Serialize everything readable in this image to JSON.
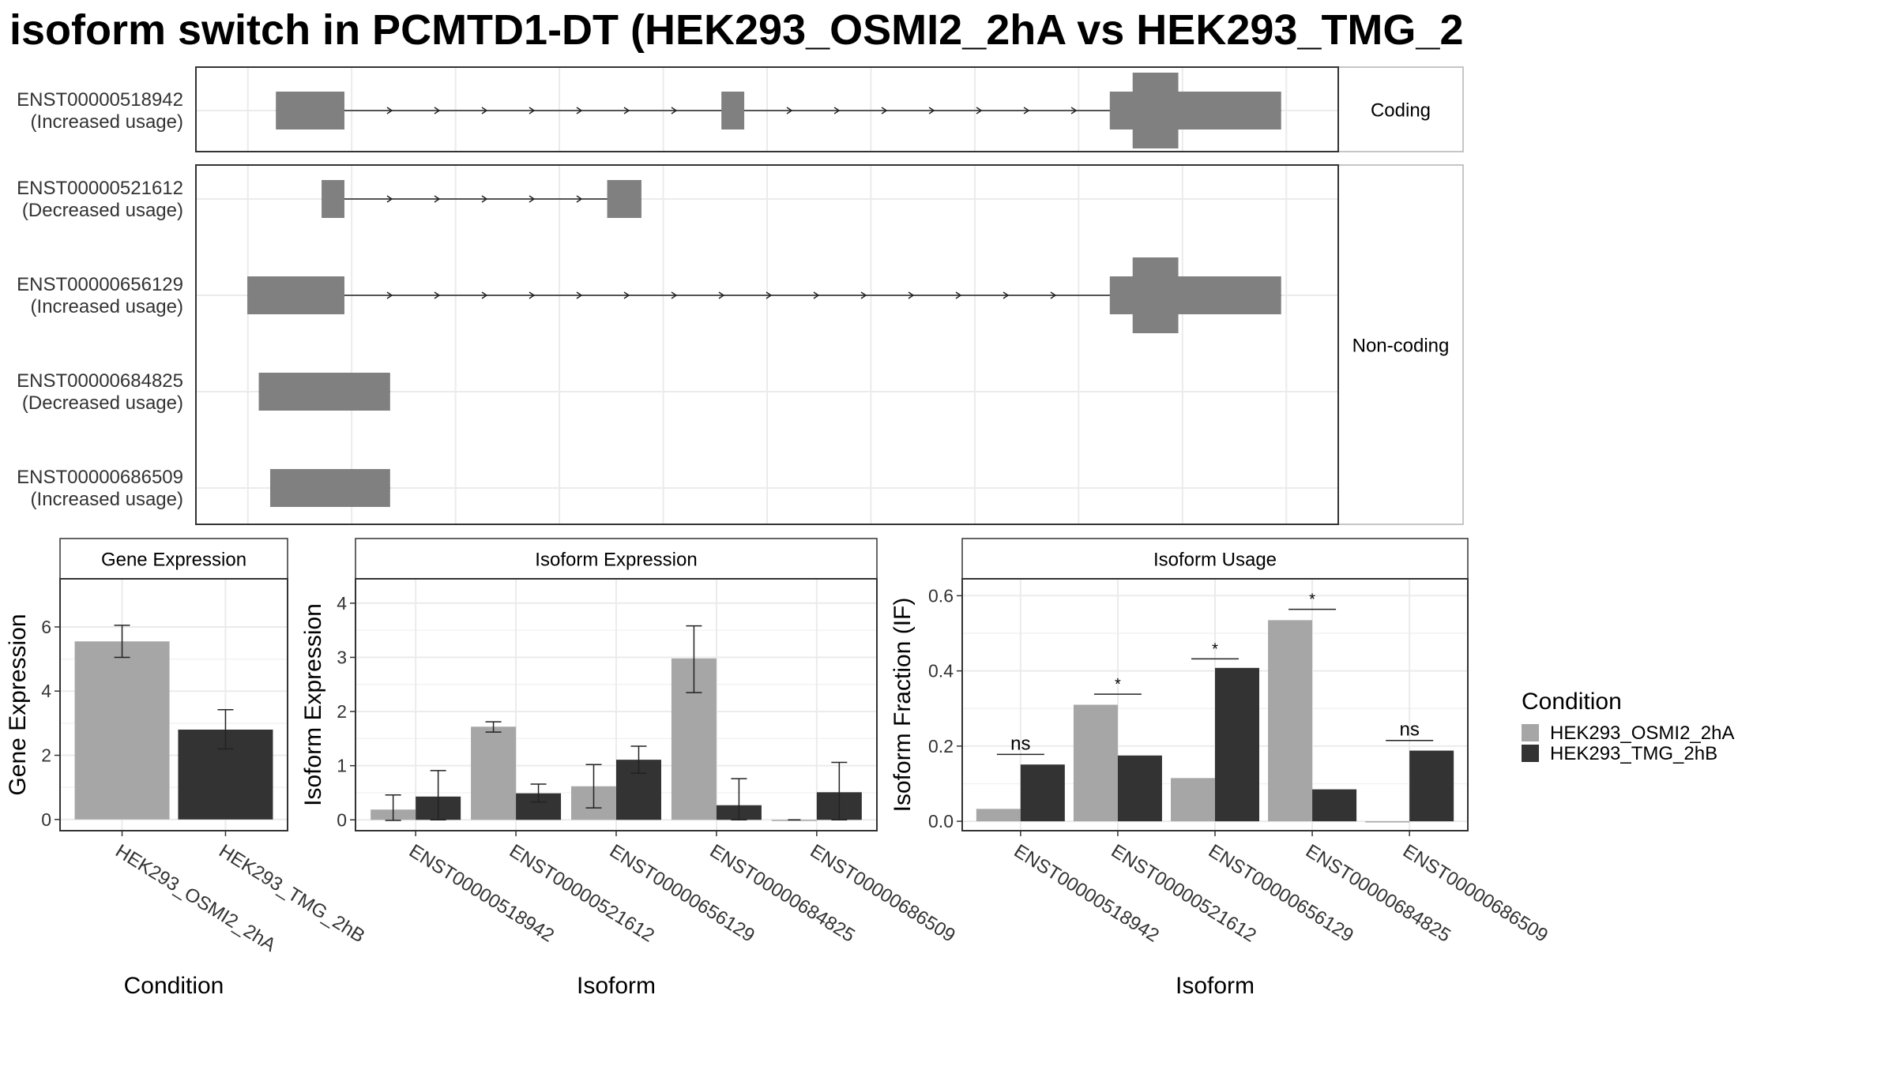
{
  "title": "isoform switch in PCMTD1-DT (HEK293_OSMI2_2hA vs HEK293_TMG_2",
  "colors": {
    "condition_a": "#a6a6a6",
    "condition_b": "#333333",
    "exon": "#808080",
    "grid": "#ebebeb",
    "panel_border": "#333333",
    "strip_border": "#b3b3b3"
  },
  "structure_panel": {
    "facets": [
      {
        "label": "Coding",
        "rows": 1
      },
      {
        "label": "Non-coding",
        "rows": 4
      }
    ],
    "transcripts": [
      {
        "id": "ENST00000518942",
        "usage": "(Increased usage)",
        "facet": "Coding",
        "exons": [
          [
            0.07,
            0.13,
            "thick"
          ],
          [
            0.46,
            0.48,
            "thick"
          ],
          [
            0.8,
            0.95,
            "thick"
          ],
          [
            0.82,
            0.86,
            "wide"
          ]
        ]
      },
      {
        "id": "ENST00000521612",
        "usage": "(Decreased usage)",
        "facet": "Non-coding",
        "exons": [
          [
            0.11,
            0.13,
            "thick"
          ],
          [
            0.36,
            0.39,
            "thick"
          ]
        ]
      },
      {
        "id": "ENST00000656129",
        "usage": "(Increased usage)",
        "facet": "Non-coding",
        "exons": [
          [
            0.045,
            0.13,
            "thick"
          ],
          [
            0.8,
            0.95,
            "thick"
          ],
          [
            0.82,
            0.86,
            "wide"
          ]
        ]
      },
      {
        "id": "ENST00000684825",
        "usage": "(Decreased usage)",
        "facet": "Non-coding",
        "exons": [
          [
            0.055,
            0.17,
            "thick"
          ]
        ]
      },
      {
        "id": "ENST00000686509",
        "usage": "(Increased usage)",
        "facet": "Non-coding",
        "exons": [
          [
            0.065,
            0.17,
            "thick"
          ]
        ]
      }
    ]
  },
  "chart_data": [
    {
      "type": "bar",
      "title": "Gene Expression",
      "xlabel": "Condition",
      "ylabel": "Gene Expression",
      "categories": [
        "HEK293_OSMI2_2hA",
        "HEK293_TMG_2hB"
      ],
      "series": [
        {
          "values": [
            5.55,
            2.8
          ],
          "error_low": [
            5.05,
            2.2
          ],
          "error_high": [
            6.05,
            3.42
          ]
        }
      ],
      "ylim": [
        -0.35,
        7.5
      ],
      "yticks": [
        0,
        2,
        4,
        6
      ],
      "grid": true
    },
    {
      "type": "bar",
      "title": "Isoform Expression",
      "xlabel": "Isoform",
      "ylabel": "Isoform Expression",
      "categories": [
        "ENST00000518942",
        "ENST00000521612",
        "ENST00000656129",
        "ENST00000684825",
        "ENST00000686509"
      ],
      "series": [
        {
          "name": "HEK293_OSMI2_2hA",
          "values": [
            0.19,
            1.72,
            0.62,
            2.98,
            0.0
          ],
          "error_low": [
            -0.01,
            1.62,
            0.22,
            2.35,
            0.0
          ],
          "error_high": [
            0.46,
            1.81,
            1.02,
            3.58,
            0.0
          ]
        },
        {
          "name": "HEK293_TMG_2hB",
          "values": [
            0.43,
            0.49,
            1.11,
            0.27,
            0.51
          ],
          "error_low": [
            0.0,
            0.33,
            0.86,
            0.0,
            0.0
          ],
          "error_high": [
            0.91,
            0.66,
            1.36,
            0.76,
            1.06
          ]
        }
      ],
      "ylim": [
        -0.2,
        4.45
      ],
      "yticks": [
        0,
        1,
        2,
        3,
        4
      ],
      "grid": true
    },
    {
      "type": "bar",
      "title": "Isoform Usage",
      "xlabel": "Isoform",
      "ylabel": "Isoform Fraction (IF)",
      "categories": [
        "ENST00000518942",
        "ENST00000521612",
        "ENST00000656129",
        "ENST00000684825",
        "ENST00000686509"
      ],
      "series": [
        {
          "name": "HEK293_OSMI2_2hA",
          "values": [
            0.033,
            0.31,
            0.115,
            0.535,
            0.0
          ]
        },
        {
          "name": "HEK293_TMG_2hB",
          "values": [
            0.151,
            0.175,
            0.408,
            0.085,
            0.188
          ]
        }
      ],
      "significance": [
        {
          "label": "ns",
          "y": 0.178
        },
        {
          "label": "*",
          "y": 0.338
        },
        {
          "label": "*",
          "y": 0.432
        },
        {
          "label": "*",
          "y": 0.564
        },
        {
          "label": "ns",
          "y": 0.215
        }
      ],
      "ylim": [
        -0.025,
        0.645
      ],
      "yticks": [
        0.0,
        0.2,
        0.4,
        0.6
      ],
      "ytick_labels": [
        "0.0",
        "0.2",
        "0.4",
        "0.6"
      ],
      "grid": true
    }
  ],
  "legend": {
    "title": "Condition",
    "items": [
      "HEK293_OSMI2_2hA",
      "HEK293_TMG_2hB"
    ]
  }
}
